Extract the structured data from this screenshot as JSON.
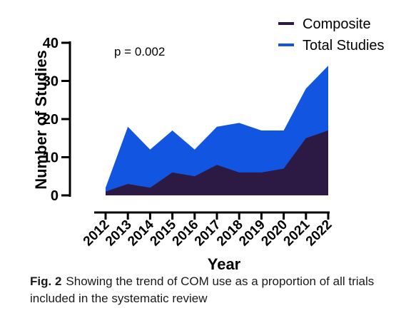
{
  "chart_data": {
    "type": "area",
    "x": [
      "2012",
      "2013",
      "2014",
      "2015",
      "2016",
      "2017",
      "2018",
      "2019",
      "2020",
      "2021",
      "2022"
    ],
    "series": [
      {
        "name": "Total Studies",
        "values": [
          2,
          18,
          12,
          17,
          12,
          18,
          19,
          17,
          17,
          28,
          34
        ],
        "color": "#1155e0"
      },
      {
        "name": "Composite",
        "values": [
          1,
          3,
          2,
          6,
          5,
          8,
          6,
          6,
          7,
          15,
          17
        ],
        "color": "#2c1a45"
      }
    ],
    "ylabel": "Number of Studies",
    "xlabel": "Year",
    "ylim": [
      0,
      40
    ],
    "yticks": [
      0,
      10,
      20,
      30,
      40
    ],
    "annotation": "p = 0.002",
    "legend_position": "top-right",
    "grid": false
  },
  "legend": [
    {
      "label": "Composite",
      "color": "#2c1a45"
    },
    {
      "label": "Total Studies",
      "color": "#1155e0"
    }
  ],
  "caption": {
    "label": "Fig. 2",
    "text": "Showing the trend of COM use as a proportion of all trials included in the systematic review"
  }
}
